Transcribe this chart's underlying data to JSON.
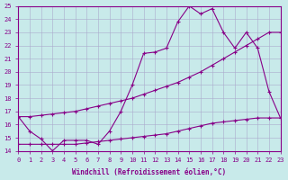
{
  "xlabel": "Windchill (Refroidissement éolien,°C)",
  "xlim": [
    0,
    23
  ],
  "ylim": [
    14,
    25
  ],
  "yticks": [
    14,
    15,
    16,
    17,
    18,
    19,
    20,
    21,
    22,
    23,
    24,
    25
  ],
  "xticks": [
    0,
    1,
    2,
    3,
    4,
    5,
    6,
    7,
    8,
    9,
    10,
    11,
    12,
    13,
    14,
    15,
    16,
    17,
    18,
    19,
    20,
    21,
    22,
    23
  ],
  "line_color": "#880088",
  "bg_color": "#c8eaea",
  "grid_color": "#aaaacc",
  "line1_x": [
    0,
    1,
    2,
    3,
    4,
    5,
    6,
    7,
    8,
    9,
    10,
    11,
    12,
    13,
    14,
    15,
    16,
    17,
    18,
    19,
    20,
    21,
    22,
    23
  ],
  "line1_y": [
    16.6,
    15.5,
    14.9,
    14.0,
    14.8,
    14.8,
    14.8,
    14.5,
    15.5,
    17.0,
    19.0,
    21.4,
    21.5,
    21.8,
    23.8,
    25.0,
    24.4,
    24.8,
    23.0,
    21.8,
    23.0,
    21.8,
    18.5,
    16.5
  ],
  "line2_x": [
    0,
    1,
    2,
    3,
    4,
    5,
    6,
    7,
    8,
    9,
    10,
    11,
    12,
    13,
    14,
    15,
    16,
    17,
    18,
    19,
    20,
    21,
    22,
    23
  ],
  "line2_y": [
    16.6,
    16.6,
    16.7,
    16.8,
    16.9,
    17.0,
    17.2,
    17.4,
    17.6,
    17.8,
    18.0,
    18.3,
    18.6,
    18.9,
    19.2,
    19.6,
    20.0,
    20.5,
    21.0,
    21.5,
    22.0,
    22.5,
    23.0,
    23.0
  ],
  "line3_x": [
    0,
    1,
    2,
    3,
    4,
    5,
    6,
    7,
    8,
    9,
    10,
    11,
    12,
    13,
    14,
    15,
    16,
    17,
    18,
    19,
    20,
    21,
    22,
    23
  ],
  "line3_y": [
    14.5,
    14.5,
    14.5,
    14.5,
    14.5,
    14.5,
    14.6,
    14.7,
    14.8,
    14.9,
    15.0,
    15.1,
    15.2,
    15.3,
    15.5,
    15.7,
    15.9,
    16.1,
    16.2,
    16.3,
    16.4,
    16.5,
    16.5,
    16.5
  ]
}
